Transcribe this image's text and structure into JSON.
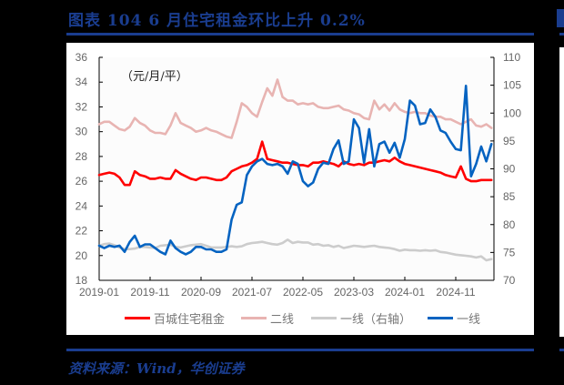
{
  "header": {
    "title": "图表  104    6 月住宅租金环比上升 0.2%"
  },
  "footer": {
    "source": "资料来源：Wind，华创证券"
  },
  "chart_data": {
    "type": "line",
    "title": "6 月住宅租金环比上升 0.2%",
    "unit_label": "（元/月/平）",
    "xlabel": "",
    "ylabel_left": "元/月/平",
    "ylabel_right": "",
    "x_ticks": [
      "2019-01",
      "2019-11",
      "2020-09",
      "2021-07",
      "2022-05",
      "2023-03",
      "2024-01",
      "2024-11"
    ],
    "x_range": [
      "2019-01",
      "2025-06"
    ],
    "ylim_left": [
      18,
      36
    ],
    "yticks_left": [
      18,
      20,
      22,
      24,
      26,
      28,
      30,
      32,
      34,
      36
    ],
    "ylim_right": [
      70,
      110
    ],
    "yticks_right": [
      70,
      75,
      80,
      85,
      90,
      95,
      100,
      105,
      110
    ],
    "grid": false,
    "legend_position": "bottom",
    "series": [
      {
        "name": "百城住宅租金",
        "axis": "left",
        "color": "#ff0000",
        "values": [
          26.5,
          26.6,
          26.7,
          26.6,
          26.3,
          25.7,
          25.7,
          26.8,
          26.5,
          26.4,
          26.2,
          26.2,
          26.3,
          26.2,
          26.2,
          26.9,
          26.6,
          26.4,
          26.2,
          26.1,
          26.3,
          26.3,
          26.2,
          26.1,
          26.1,
          26.3,
          26.8,
          27.0,
          27.2,
          27.3,
          27.5,
          27.8,
          29.2,
          27.8,
          27.7,
          27.6,
          27.5,
          27.5,
          27.4,
          27.3,
          27.3,
          27.2,
          27.5,
          27.5,
          27.6,
          27.5,
          27.4,
          27.2,
          27.6,
          27.4,
          27.3,
          27.4,
          27.3,
          27.5,
          27.5,
          27.6,
          27.7,
          27.6,
          27.9,
          27.6,
          27.4,
          27.3,
          27.2,
          27.1,
          27.0,
          26.9,
          26.8,
          26.7,
          26.5,
          26.4,
          26.3,
          27.2,
          26.2,
          26.0,
          26.0,
          26.1,
          26.1,
          26.1
        ]
      },
      {
        "name": "二线",
        "axis": "left",
        "color": "#e8b4b2",
        "values": [
          30.6,
          30.8,
          30.8,
          30.5,
          30.2,
          30.1,
          30.4,
          31.1,
          30.7,
          30.5,
          30.1,
          29.9,
          29.9,
          29.8,
          30.5,
          31.5,
          30.7,
          30.5,
          30.3,
          30.0,
          30.1,
          30.3,
          30.1,
          30.0,
          29.8,
          29.6,
          29.5,
          30.8,
          32.3,
          32.0,
          31.5,
          31.2,
          32.4,
          33.5,
          32.9,
          34.2,
          32.8,
          32.5,
          32.5,
          32.2,
          32.3,
          32.2,
          32.3,
          32.0,
          31.9,
          31.9,
          32.0,
          32.1,
          31.8,
          31.7,
          31.5,
          31.4,
          31.1,
          31.0,
          32.5,
          31.8,
          32.2,
          31.7,
          32.3,
          31.8,
          31.6,
          31.5,
          31.6,
          31.5,
          31.5,
          31.3,
          31.2,
          31.2,
          31.0,
          31.0,
          30.8,
          30.6,
          30.8,
          31.0,
          30.5,
          30.4,
          30.6,
          30.3
        ]
      },
      {
        "name": "一线（右轴）",
        "axis": "right",
        "color": "#cccccc",
        "values": [
          76.2,
          76.5,
          76.6,
          76.3,
          75.9,
          75.6,
          75.6,
          75.7,
          76.0,
          76.0,
          75.9,
          75.8,
          76.2,
          76.3,
          76.4,
          76.0,
          75.9,
          76.1,
          76.3,
          76.4,
          76.5,
          76.2,
          75.9,
          75.9,
          75.9,
          76.0,
          76.1,
          76.0,
          76.1,
          76.5,
          76.7,
          76.8,
          76.9,
          76.7,
          76.5,
          76.4,
          76.7,
          77.3,
          76.7,
          76.9,
          76.8,
          76.8,
          76.4,
          76.5,
          76.2,
          76.3,
          76.0,
          76.2,
          75.8,
          76.0,
          76.2,
          76.1,
          76.0,
          76.1,
          76.2,
          76.0,
          75.9,
          75.8,
          75.6,
          75.3,
          75.5,
          75.4,
          75.4,
          75.3,
          75.4,
          75.3,
          75.4,
          75.1,
          75.0,
          74.8,
          74.6,
          74.5,
          74.4,
          74.3,
          74.1,
          74.3,
          73.6,
          73.8
        ]
      },
      {
        "name": "一线",
        "axis": "left",
        "color": "#0563c1",
        "values": [
          20.8,
          20.6,
          20.8,
          20.7,
          20.8,
          20.3,
          21.1,
          21.6,
          20.7,
          20.9,
          20.9,
          20.6,
          20.3,
          20.1,
          21.2,
          20.6,
          20.3,
          20.1,
          20.3,
          20.7,
          20.7,
          20.5,
          20.5,
          20.3,
          20.3,
          20.5,
          22.9,
          24.1,
          24.3,
          26.5,
          27.2,
          27.6,
          27.8,
          27.4,
          27.3,
          27.4,
          27.2,
          26.6,
          27.6,
          27.4,
          26.0,
          25.6,
          25.9,
          27.0,
          27.5,
          27.4,
          28.6,
          29.3,
          27.4,
          27.6,
          31.0,
          30.3,
          27.5,
          30.2,
          27.2,
          29.0,
          29.2,
          28.3,
          29.1,
          27.9,
          29.4,
          32.5,
          32.1,
          30.6,
          30.7,
          31.8,
          31.2,
          30.1,
          29.9,
          29.2,
          28.6,
          28.5,
          33.7,
          26.4,
          27.4,
          28.8,
          27.6,
          29.0
        ]
      }
    ]
  },
  "legend": {
    "items": [
      {
        "label": "百城住宅租金",
        "color": "#ff0000"
      },
      {
        "label": "二线",
        "color": "#e8b4b2"
      },
      {
        "label": "一线（右轴）",
        "color": "#cccccc"
      },
      {
        "label": "一线",
        "color": "#0563c1"
      }
    ]
  }
}
